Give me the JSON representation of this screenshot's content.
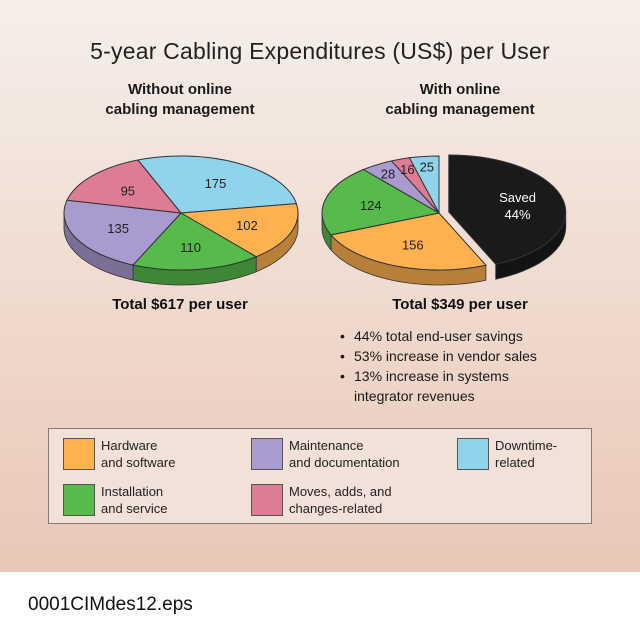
{
  "chart_data": {
    "title": "5-year Cabling Expenditures (US$) per User",
    "colors": {
      "hardware": "#ffb14f",
      "maintenance": "#a99ad0",
      "downtime": "#8fd4ec",
      "installation": "#56bb4b",
      "moves": "#de7c96",
      "saved": "#1a1a1a"
    },
    "charts": [
      {
        "type": "pie",
        "subtitle_line1": "Without online",
        "subtitle_line2": "cabling management",
        "total": "Total $617 per user",
        "slices": [
          {
            "key": "downtime",
            "value": 175,
            "label": "175"
          },
          {
            "key": "hardware",
            "value": 102,
            "label": "102"
          },
          {
            "key": "installation",
            "value": 110,
            "label": "110"
          },
          {
            "key": "maintenance",
            "value": 135,
            "label": "135"
          },
          {
            "key": "moves",
            "value": 95,
            "label": "95"
          }
        ]
      },
      {
        "type": "pie",
        "subtitle_line1": "With online",
        "subtitle_line2": "cabling management",
        "total": "Total $349 per user",
        "slices": [
          {
            "key": "saved",
            "value": 268,
            "label": "Saved",
            "label2": "44%"
          },
          {
            "key": "hardware",
            "value": 156,
            "label": "156"
          },
          {
            "key": "installation",
            "value": 124,
            "label": "124"
          },
          {
            "key": "maintenance",
            "value": 28,
            "label": "28"
          },
          {
            "key": "moves",
            "value": 16,
            "label": "16"
          },
          {
            "key": "downtime",
            "value": 25,
            "label": "25"
          }
        ]
      }
    ]
  },
  "bullets": {
    "items": [
      "44% total end-user savings",
      "53% increase in vendor sales",
      "13% increase in systems",
      "integrator revenues"
    ],
    "bullet_char": "•"
  },
  "legend": {
    "hardware": {
      "line1": "Hardware",
      "line2": "and software"
    },
    "maintenance": {
      "line1": "Maintenance",
      "line2": "and documentation"
    },
    "downtime": {
      "line1": "Downtime-",
      "line2": "related"
    },
    "installation": {
      "line1": "Installation",
      "line2": "and service"
    },
    "moves": {
      "line1": "Moves, adds, and",
      "line2": "changes-related"
    }
  },
  "footer": "0001CIMdes12.eps"
}
